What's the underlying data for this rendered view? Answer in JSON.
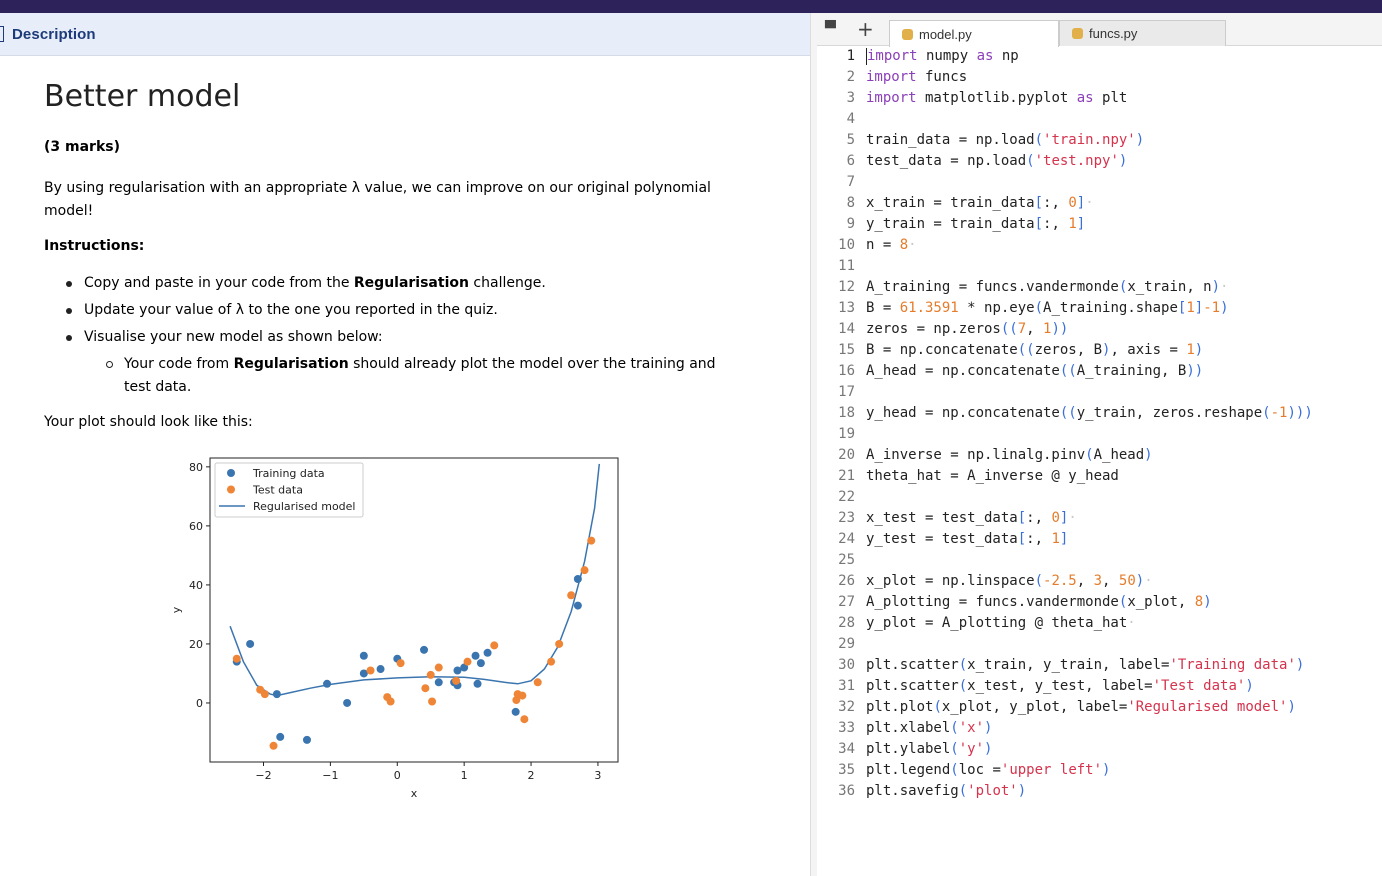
{
  "left_panel": {
    "header_label": "Description",
    "title": "Better model",
    "marks": "(3 marks)",
    "intro": "By using regularisation with an appropriate λ value, we can improve on our original polynomial model!",
    "instructions_label": "Instructions:",
    "bullets": [
      {
        "pre": "Copy and paste in your code from the ",
        "bold": "Regularisation",
        "post": " challenge."
      },
      {
        "pre": "Update your value of λ to the one you reported in the quiz.",
        "bold": "",
        "post": ""
      },
      {
        "pre": "Visualise your new model as shown below:",
        "bold": "",
        "post": ""
      }
    ],
    "sub_bullet": {
      "pre": "Your code from ",
      "bold": "Regularisation",
      "post": " should already plot the model over the training and test data."
    },
    "plot_caption": "Your plot should look like this:"
  },
  "chart_data": {
    "type": "scatter",
    "xlabel": "x",
    "ylabel": "y",
    "xlim": [
      -2.8,
      3.3
    ],
    "ylim": [
      -20,
      83
    ],
    "xticks": [
      -2,
      -1,
      0,
      1,
      2,
      3
    ],
    "yticks": [
      0,
      20,
      40,
      60,
      80
    ],
    "legend_position": "upper left",
    "series": [
      {
        "name": "Training data",
        "kind": "scatter",
        "color": "#3b75af",
        "points": [
          [
            -2.4,
            14
          ],
          [
            -2.2,
            20
          ],
          [
            -1.8,
            3
          ],
          [
            -1.75,
            -11.5
          ],
          [
            -1.35,
            -12.5
          ],
          [
            -1.05,
            6.5
          ],
          [
            -0.75,
            0
          ],
          [
            -0.5,
            16
          ],
          [
            -0.5,
            10
          ],
          [
            -0.25,
            11.5
          ],
          [
            0,
            15
          ],
          [
            0.4,
            18
          ],
          [
            0.62,
            7
          ],
          [
            0.85,
            7
          ],
          [
            0.9,
            11
          ],
          [
            0.9,
            6
          ],
          [
            1.0,
            12
          ],
          [
            1.2,
            6.5
          ],
          [
            1.17,
            16
          ],
          [
            1.25,
            13.5
          ],
          [
            1.35,
            17
          ],
          [
            1.77,
            -3
          ],
          [
            2.7,
            33
          ],
          [
            2.7,
            42
          ]
        ]
      },
      {
        "name": "Test data",
        "kind": "scatter",
        "color": "#ef8536",
        "points": [
          [
            -2.4,
            15
          ],
          [
            -2.05,
            4.5
          ],
          [
            -1.98,
            3
          ],
          [
            -1.85,
            -14.5
          ],
          [
            -0.4,
            11
          ],
          [
            -0.15,
            2
          ],
          [
            -0.1,
            0.5
          ],
          [
            0.05,
            13.5
          ],
          [
            0.42,
            5
          ],
          [
            0.5,
            9.5
          ],
          [
            0.52,
            0.5
          ],
          [
            0.62,
            12
          ],
          [
            0.88,
            7.5
          ],
          [
            1.05,
            14
          ],
          [
            1.45,
            19.5
          ],
          [
            1.78,
            1
          ],
          [
            1.8,
            3
          ],
          [
            1.87,
            2.5
          ],
          [
            1.9,
            -5.5
          ],
          [
            2.1,
            7
          ],
          [
            2.3,
            14
          ],
          [
            2.42,
            20
          ],
          [
            2.6,
            36.5
          ],
          [
            2.8,
            45
          ],
          [
            2.9,
            55
          ]
        ]
      },
      {
        "name": "Regularised model",
        "kind": "line",
        "color": "#3b75af",
        "points": [
          [
            -2.5,
            26
          ],
          [
            -2.3,
            14
          ],
          [
            -2.1,
            6
          ],
          [
            -1.9,
            3
          ],
          [
            -1.8,
            2.5
          ],
          [
            -1.6,
            3.5
          ],
          [
            -1.3,
            5
          ],
          [
            -1,
            6.3
          ],
          [
            -0.5,
            7.8
          ],
          [
            0,
            8.5
          ],
          [
            0.5,
            8.9
          ],
          [
            1,
            8.7
          ],
          [
            1.3,
            8
          ],
          [
            1.6,
            7
          ],
          [
            1.8,
            6.5
          ],
          [
            2.0,
            7.5
          ],
          [
            2.2,
            11.5
          ],
          [
            2.4,
            19
          ],
          [
            2.6,
            31
          ],
          [
            2.8,
            48
          ],
          [
            2.95,
            66
          ],
          [
            3.02,
            81
          ]
        ]
      }
    ]
  },
  "editor": {
    "tabs": [
      {
        "label": "model.py",
        "active": true
      },
      {
        "label": "funcs.py",
        "active": false
      }
    ],
    "lines": [
      [
        [
          "kw",
          "import"
        ],
        [
          "txt",
          " numpy "
        ],
        [
          "kw",
          "as"
        ],
        [
          "txt",
          " np"
        ]
      ],
      [
        [
          "kw",
          "import"
        ],
        [
          "txt",
          " funcs"
        ]
      ],
      [
        [
          "kw",
          "import"
        ],
        [
          "txt",
          " matplotlib.pyplot "
        ],
        [
          "kw",
          "as"
        ],
        [
          "txt",
          " plt"
        ]
      ],
      [],
      [
        [
          "txt",
          "train_data = np.load"
        ],
        [
          "br",
          "("
        ],
        [
          "str",
          "'train.npy'"
        ],
        [
          "br",
          ")"
        ]
      ],
      [
        [
          "txt",
          "test_data = np.load"
        ],
        [
          "br",
          "("
        ],
        [
          "str",
          "'test.npy'"
        ],
        [
          "br",
          ")"
        ]
      ],
      [],
      [
        [
          "txt",
          "x_train = train_data"
        ],
        [
          "br",
          "["
        ],
        [
          "txt",
          ":, "
        ],
        [
          "num",
          "0"
        ],
        [
          "br",
          "]"
        ],
        [
          "dot",
          "·"
        ]
      ],
      [
        [
          "txt",
          "y_train = train_data"
        ],
        [
          "br",
          "["
        ],
        [
          "txt",
          ":, "
        ],
        [
          "num",
          "1"
        ],
        [
          "br",
          "]"
        ]
      ],
      [
        [
          "txt",
          "n = "
        ],
        [
          "num",
          "8"
        ],
        [
          "dot",
          "·"
        ]
      ],
      [],
      [
        [
          "txt",
          "A_training = funcs.vandermonde"
        ],
        [
          "br",
          "("
        ],
        [
          "txt",
          "x_train, n"
        ],
        [
          "br",
          ")"
        ],
        [
          "dot",
          "·"
        ]
      ],
      [
        [
          "txt",
          "B = "
        ],
        [
          "num",
          "61.3591"
        ],
        [
          "txt",
          " * np.eye"
        ],
        [
          "br",
          "("
        ],
        [
          "txt",
          "A_training.shape"
        ],
        [
          "br",
          "["
        ],
        [
          "num",
          "1"
        ],
        [
          "br",
          "]"
        ],
        [
          "num",
          "-1"
        ],
        [
          "br",
          ")"
        ]
      ],
      [
        [
          "txt",
          "zeros = np.zeros"
        ],
        [
          "br",
          "(("
        ],
        [
          "num",
          "7"
        ],
        [
          "txt",
          ", "
        ],
        [
          "num",
          "1"
        ],
        [
          "br",
          "))"
        ]
      ],
      [
        [
          "txt",
          "B = np.concatenate"
        ],
        [
          "br",
          "(("
        ],
        [
          "txt",
          "zeros, B"
        ],
        [
          "br",
          ")"
        ],
        [
          "txt",
          ", axis = "
        ],
        [
          "num",
          "1"
        ],
        [
          "br",
          ")"
        ]
      ],
      [
        [
          "txt",
          "A_head = np.concatenate"
        ],
        [
          "br",
          "(("
        ],
        [
          "txt",
          "A_training, B"
        ],
        [
          "br",
          "))"
        ]
      ],
      [],
      [
        [
          "txt",
          "y_head = np.concatenate"
        ],
        [
          "br",
          "(("
        ],
        [
          "txt",
          "y_train, zeros.reshape"
        ],
        [
          "br",
          "("
        ],
        [
          "num",
          "-1"
        ],
        [
          "br",
          ")))"
        ]
      ],
      [],
      [
        [
          "txt",
          "A_inverse = np.linalg.pinv"
        ],
        [
          "br",
          "("
        ],
        [
          "txt",
          "A_head"
        ],
        [
          "br",
          ")"
        ]
      ],
      [
        [
          "txt",
          "theta_hat = A_inverse @ y_head"
        ]
      ],
      [],
      [
        [
          "txt",
          "x_test = test_data"
        ],
        [
          "br",
          "["
        ],
        [
          "txt",
          ":, "
        ],
        [
          "num",
          "0"
        ],
        [
          "br",
          "]"
        ],
        [
          "dot",
          "·"
        ]
      ],
      [
        [
          "txt",
          "y_test = test_data"
        ],
        [
          "br",
          "["
        ],
        [
          "txt",
          ":, "
        ],
        [
          "num",
          "1"
        ],
        [
          "br",
          "]"
        ]
      ],
      [],
      [
        [
          "txt",
          "x_plot = np.linspace"
        ],
        [
          "br",
          "("
        ],
        [
          "num",
          "-2.5"
        ],
        [
          "txt",
          ", "
        ],
        [
          "num",
          "3"
        ],
        [
          "txt",
          ", "
        ],
        [
          "num",
          "50"
        ],
        [
          "br",
          ")"
        ],
        [
          "dot",
          "·"
        ]
      ],
      [
        [
          "txt",
          "A_plotting = funcs.vandermonde"
        ],
        [
          "br",
          "("
        ],
        [
          "txt",
          "x_plot, "
        ],
        [
          "num",
          "8"
        ],
        [
          "br",
          ")"
        ]
      ],
      [
        [
          "txt",
          "y_plot = A_plotting @ theta_hat"
        ],
        [
          "dot",
          "·"
        ]
      ],
      [],
      [
        [
          "txt",
          "plt.scatter"
        ],
        [
          "br",
          "("
        ],
        [
          "txt",
          "x_train, y_train, label="
        ],
        [
          "str",
          "'Training data'"
        ],
        [
          "br",
          ")"
        ]
      ],
      [
        [
          "txt",
          "plt.scatter"
        ],
        [
          "br",
          "("
        ],
        [
          "txt",
          "x_test, y_test, label="
        ],
        [
          "str",
          "'Test data'"
        ],
        [
          "br",
          ")"
        ]
      ],
      [
        [
          "txt",
          "plt.plot"
        ],
        [
          "br",
          "("
        ],
        [
          "txt",
          "x_plot, y_plot, label="
        ],
        [
          "str",
          "'Regularised model'"
        ],
        [
          "br",
          ")"
        ]
      ],
      [
        [
          "txt",
          "plt.xlabel"
        ],
        [
          "br",
          "("
        ],
        [
          "str",
          "'x'"
        ],
        [
          "br",
          ")"
        ]
      ],
      [
        [
          "txt",
          "plt.ylabel"
        ],
        [
          "br",
          "("
        ],
        [
          "str",
          "'y'"
        ],
        [
          "br",
          ")"
        ]
      ],
      [
        [
          "txt",
          "plt.legend"
        ],
        [
          "br",
          "("
        ],
        [
          "txt",
          "loc ="
        ],
        [
          "str",
          "'upper left'"
        ],
        [
          "br",
          ")"
        ]
      ],
      [
        [
          "txt",
          "plt.savefig"
        ],
        [
          "br",
          "("
        ],
        [
          "str",
          "'plot'"
        ],
        [
          "br",
          ")"
        ]
      ]
    ]
  }
}
